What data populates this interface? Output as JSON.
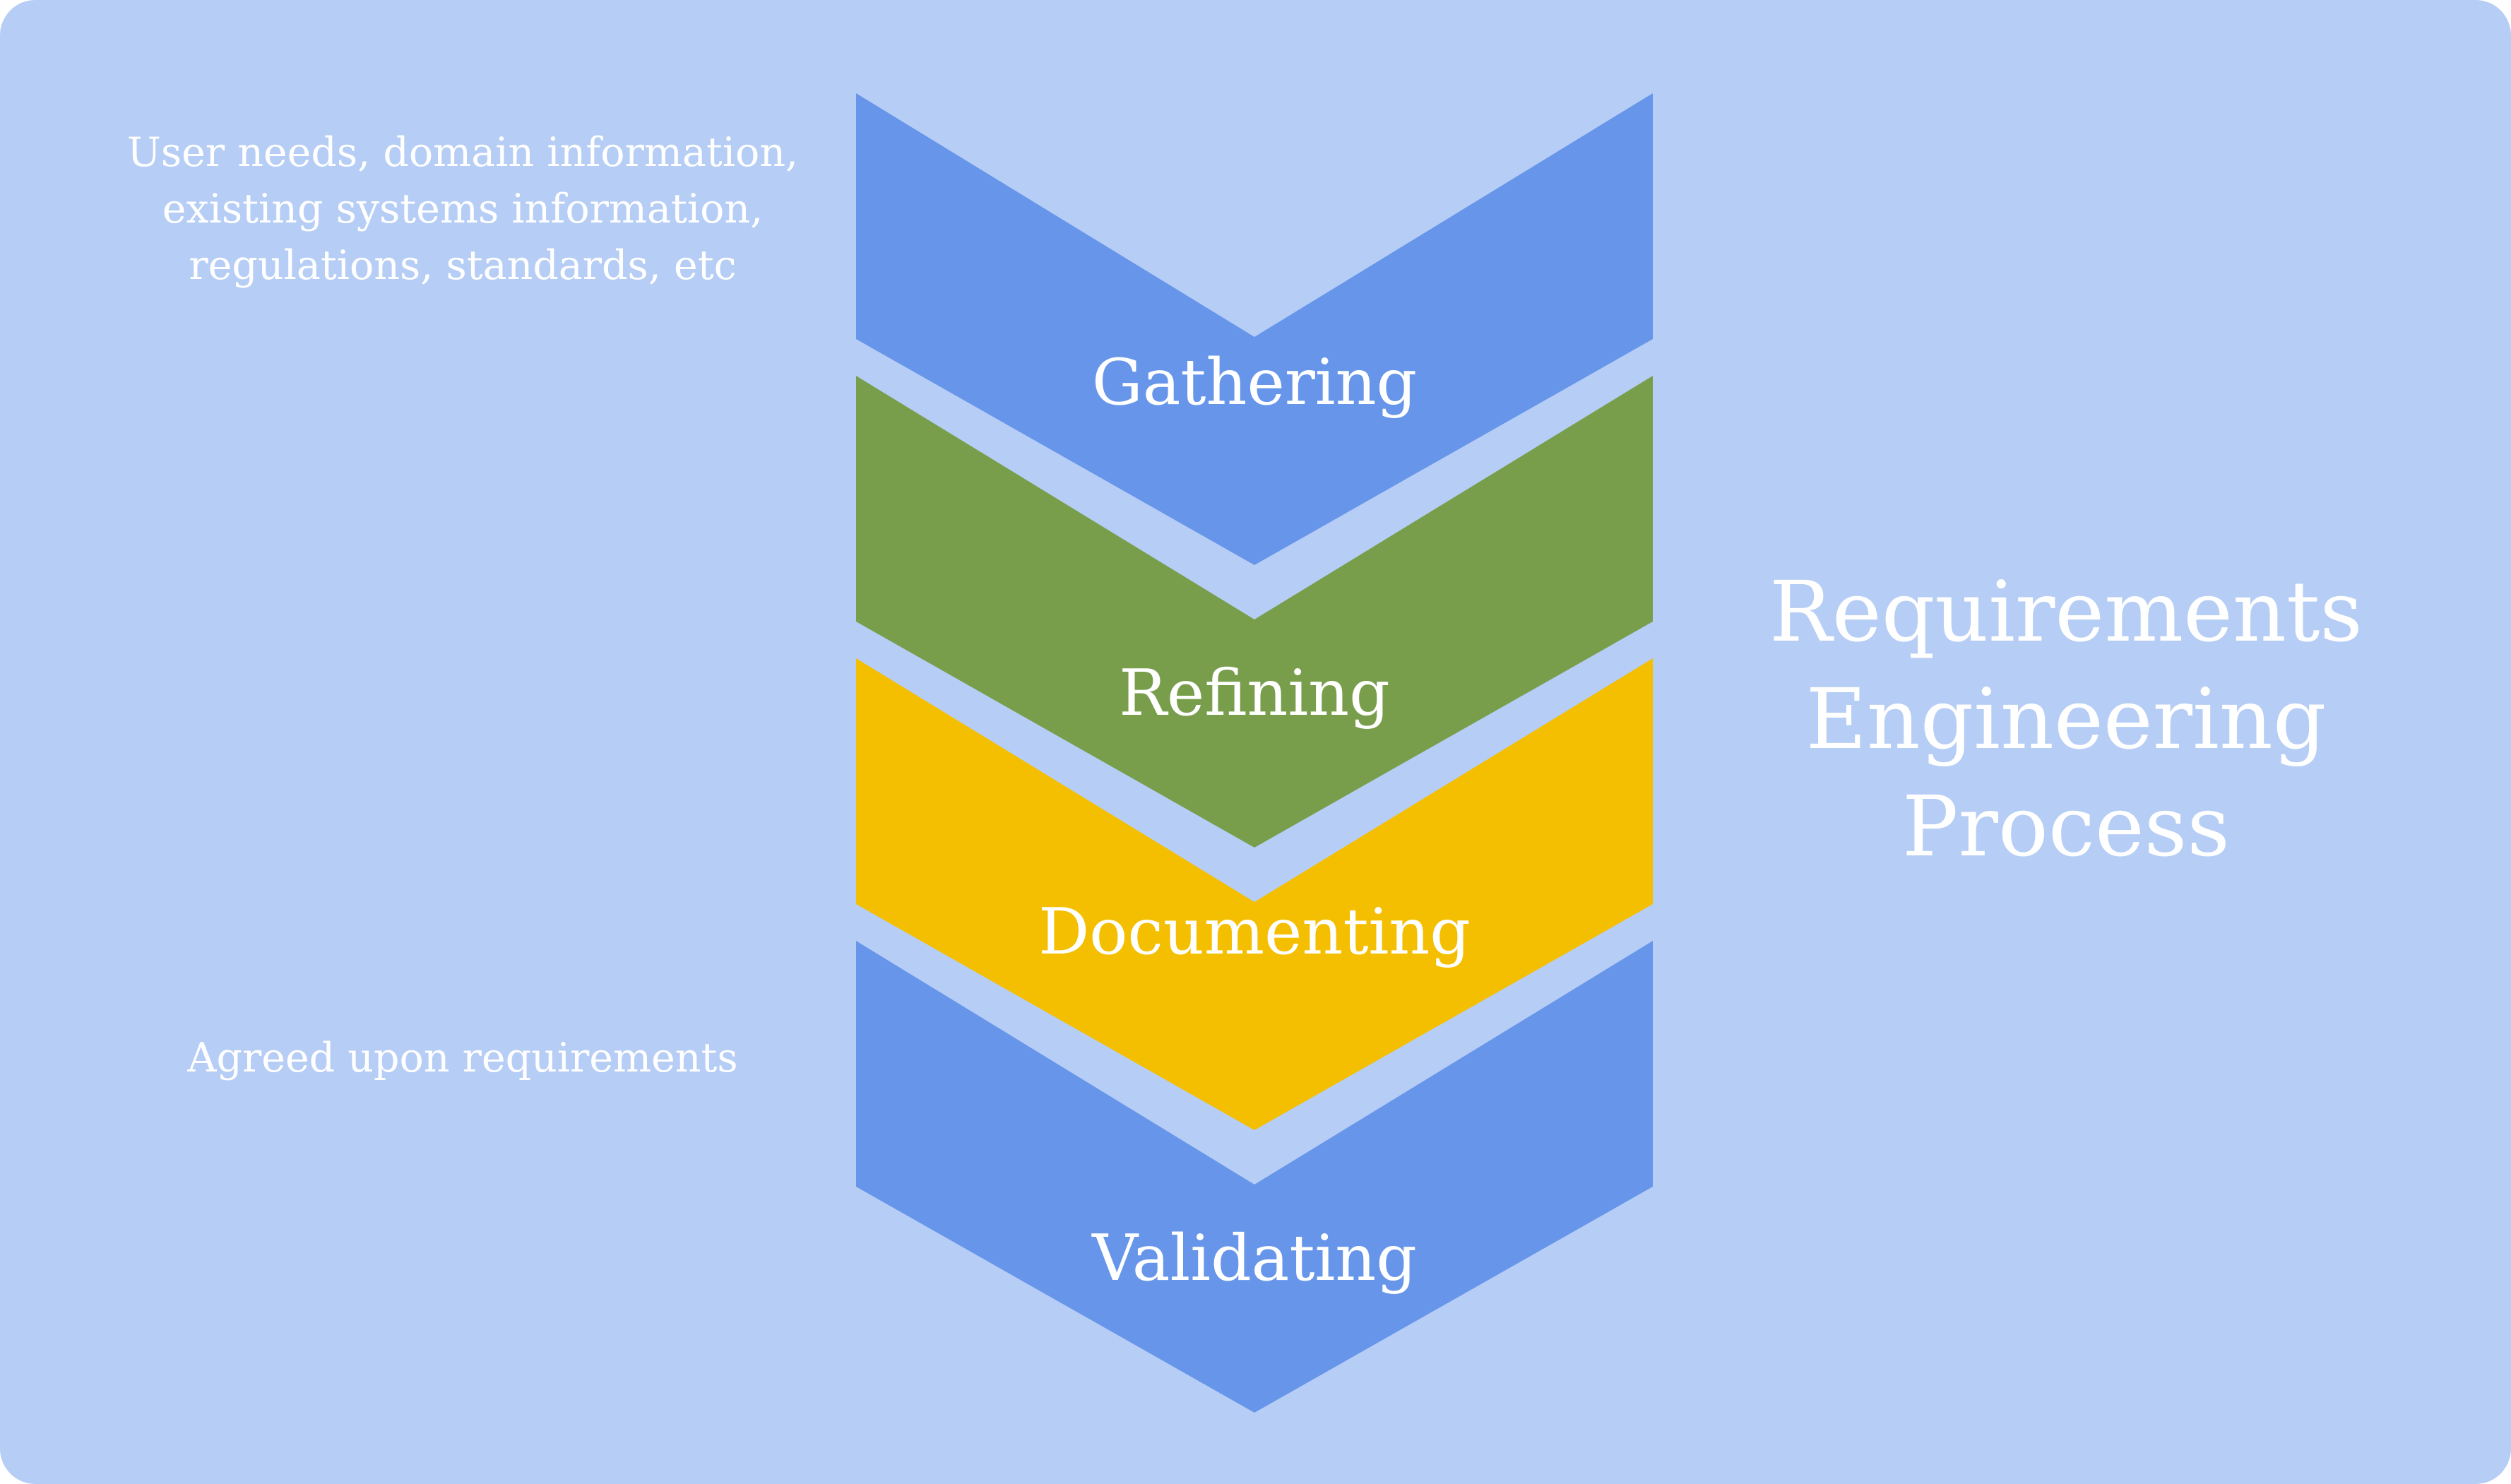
{
  "colors": {
    "background": "#b6cdf5",
    "text": "#ffffff"
  },
  "title_lines": [
    "Requirements",
    "Engineering",
    "Process"
  ],
  "input_note_lines": [
    "User needs, domain information,",
    "existing systems information,",
    "regulations, standards, etc"
  ],
  "output_note": "Agreed upon requirements",
  "stages": [
    {
      "label": "Gathering",
      "color": "#6695ea"
    },
    {
      "label": "Refining",
      "color": "#789e4c"
    },
    {
      "label": "Documenting",
      "color": "#f4bf00"
    },
    {
      "label": "Validating",
      "color": "#6695ea"
    }
  ]
}
